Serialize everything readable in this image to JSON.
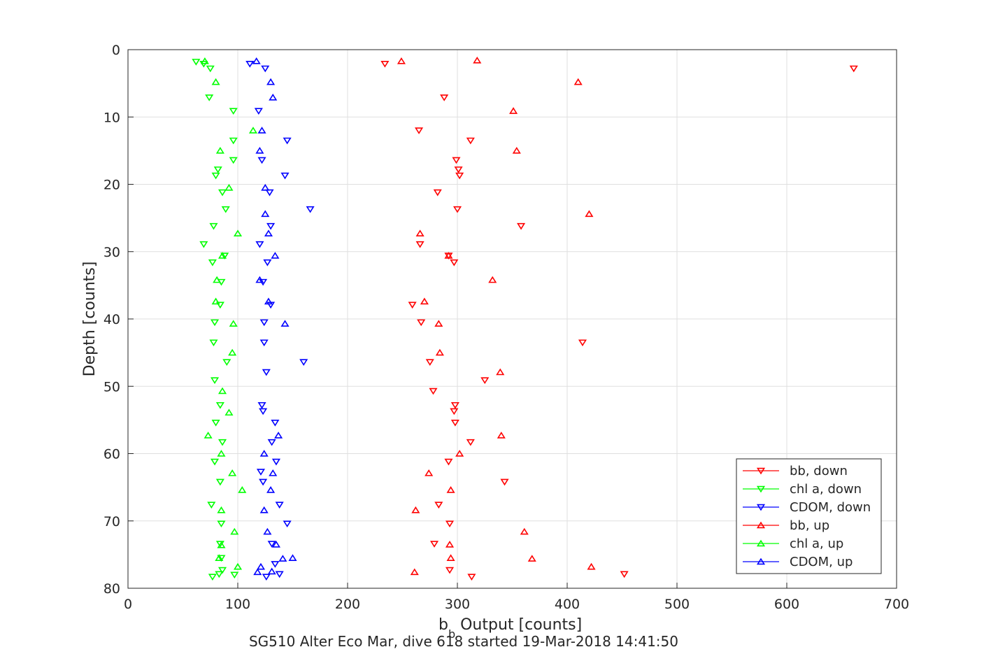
{
  "chart_data": {
    "type": "scatter",
    "title": "SG510 Alter Eco Mar, dive 618 started 19-Mar-2018 14:41:50",
    "xlabel_main": "b",
    "xlabel_sub": "b",
    "xlabel_rest": " Output [counts]",
    "ylabel": "Depth [counts]",
    "xlim": [
      0,
      700
    ],
    "ylim": [
      0,
      80
    ],
    "y_reversed": true,
    "grid": true,
    "legend_position": "bottom-right",
    "x_ticks": [
      "0",
      "100",
      "200",
      "300",
      "400",
      "500",
      "600",
      "700"
    ],
    "y_ticks": [
      "0",
      "10",
      "20",
      "30",
      "40",
      "50",
      "60",
      "70",
      "80"
    ],
    "series": [
      {
        "name": "bb, down",
        "color": "#ff0000",
        "marker": "triangle-down",
        "x": [
          234,
          288,
          265,
          312,
          299,
          301,
          302,
          282,
          300,
          358,
          266,
          292,
          297,
          259,
          267,
          414,
          275,
          325,
          278,
          298,
          297,
          298,
          312,
          292,
          343,
          283,
          293,
          279,
          293,
          313,
          452,
          661
        ],
        "y": [
          2.1,
          7.1,
          12.0,
          13.5,
          16.4,
          17.8,
          18.7,
          21.2,
          23.7,
          26.2,
          28.9,
          30.6,
          31.6,
          37.9,
          40.5,
          43.5,
          46.4,
          49.1,
          50.7,
          52.8,
          53.7,
          55.4,
          58.3,
          61.2,
          64.2,
          67.6,
          70.4,
          73.4,
          77.3,
          78.3,
          77.9,
          2.8
        ]
      },
      {
        "name": "chl a, down",
        "color": "#00ff00",
        "marker": "triangle-down",
        "x": [
          62,
          69,
          75,
          74,
          96,
          96,
          96,
          82,
          80,
          86,
          89,
          78,
          69,
          88,
          77,
          85,
          84,
          79,
          78,
          90,
          79,
          84,
          80,
          86,
          79,
          84,
          76,
          85,
          84,
          85,
          86,
          83,
          97,
          77
        ],
        "y": [
          1.8,
          2.1,
          2.8,
          7.1,
          9.1,
          13.5,
          16.4,
          17.8,
          18.7,
          21.2,
          23.7,
          26.2,
          28.9,
          30.6,
          31.6,
          34.5,
          37.9,
          40.5,
          43.5,
          46.4,
          49.1,
          52.8,
          55.4,
          58.3,
          61.2,
          64.2,
          67.6,
          70.4,
          73.4,
          75.5,
          77.3,
          77.9,
          78.0,
          78.3
        ]
      },
      {
        "name": "CDOM, down",
        "color": "#0000ff",
        "marker": "triangle-down",
        "x": [
          111,
          125,
          119,
          145,
          122,
          143,
          129,
          166,
          130,
          120,
          127,
          123,
          130,
          124,
          124,
          160,
          126,
          122,
          123,
          134,
          131,
          135,
          121,
          123,
          138,
          145,
          131,
          134,
          138,
          126
        ],
        "y": [
          2.1,
          2.8,
          9.1,
          13.5,
          16.4,
          18.7,
          21.2,
          23.7,
          26.2,
          28.9,
          31.6,
          34.5,
          37.9,
          40.5,
          43.5,
          46.4,
          47.9,
          52.8,
          53.7,
          55.4,
          58.3,
          61.2,
          62.7,
          64.2,
          67.6,
          70.4,
          73.4,
          76.4,
          77.9,
          78.3
        ]
      },
      {
        "name": "bb, up",
        "color": "#ff0000",
        "marker": "triangle-up",
        "x": [
          249,
          318,
          410,
          351,
          354,
          420,
          266,
          292,
          332,
          270,
          283,
          284,
          339,
          340,
          274,
          294,
          302,
          262,
          361,
          293,
          294,
          368,
          261,
          422
        ],
        "y": [
          1.7,
          1.6,
          4.8,
          9.1,
          15.0,
          24.4,
          27.3,
          30.6,
          34.2,
          37.4,
          40.7,
          45.0,
          47.9,
          57.3,
          62.9,
          65.4,
          60.0,
          68.4,
          71.6,
          73.5,
          75.5,
          75.6,
          77.6,
          76.8
        ]
      },
      {
        "name": "chl a, up",
        "color": "#00ff00",
        "marker": "triangle-up",
        "x": [
          70,
          80,
          114,
          84,
          92,
          100,
          86,
          81,
          80,
          96,
          95,
          86,
          92,
          73,
          85,
          95,
          104,
          85,
          97,
          85,
          83,
          100
        ],
        "y": [
          1.7,
          4.8,
          12.0,
          15.0,
          20.5,
          27.3,
          30.6,
          34.2,
          37.4,
          40.7,
          45.0,
          50.7,
          53.9,
          57.3,
          60.0,
          62.9,
          65.4,
          68.4,
          71.6,
          73.6,
          75.5,
          76.8
        ]
      },
      {
        "name": "CDOM, up",
        "color": "#0000ff",
        "marker": "triangle-up",
        "x": [
          117,
          130,
          132,
          122,
          120,
          125,
          125,
          128,
          134,
          120,
          128,
          143,
          137,
          124,
          132,
          130,
          124,
          127,
          135,
          150,
          121,
          141,
          131,
          118
        ],
        "y": [
          1.7,
          4.8,
          7.1,
          12.0,
          15.0,
          20.5,
          24.4,
          27.3,
          30.6,
          34.2,
          37.4,
          40.7,
          57.3,
          60.0,
          62.9,
          65.4,
          68.4,
          71.6,
          73.5,
          75.5,
          76.8,
          75.6,
          77.5,
          77.6
        ]
      }
    ]
  }
}
